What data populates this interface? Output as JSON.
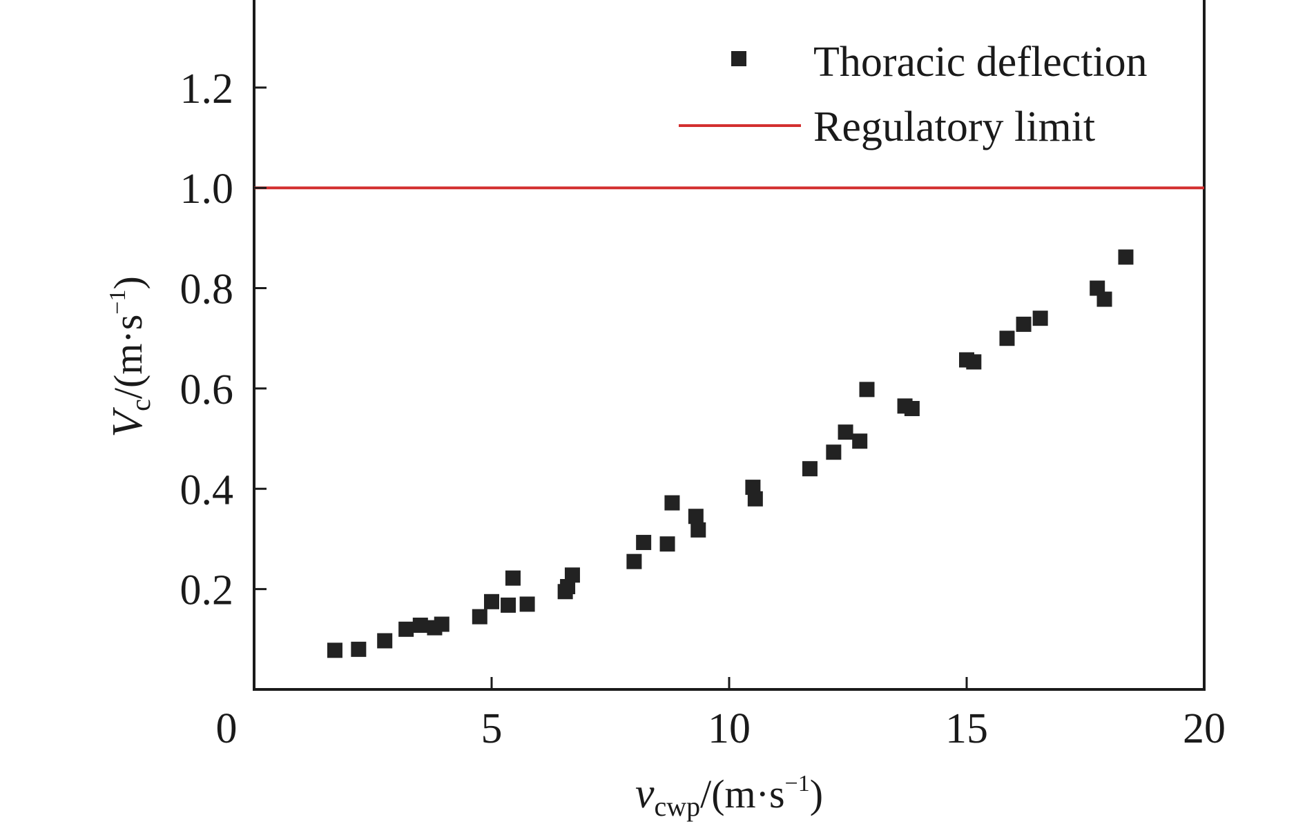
{
  "chart_data": {
    "type": "scatter",
    "x_axis": {
      "ticks": [
        0,
        5,
        10,
        15,
        20
      ],
      "tick_labels": [
        "0",
        "5",
        "10",
        "15",
        "20"
      ],
      "range": [
        0,
        20
      ],
      "label": {
        "symbol": "v",
        "subscript": "cwp",
        "unit_open": "/(m·s",
        "unit_exp": "−1",
        "unit_close": ")"
      }
    },
    "y_axis": {
      "ticks": [
        0.2,
        0.4,
        0.6,
        0.8,
        1.0,
        1.2
      ],
      "tick_labels": [
        "0.2",
        "0.4",
        "0.6",
        "0.8",
        "1.0",
        "1.2"
      ],
      "range": [
        0.0,
        1.38
      ],
      "label": {
        "symbol": "V",
        "subscript": "c",
        "unit_open": "/(m·s",
        "unit_exp": "−1",
        "unit_close": ")"
      }
    },
    "grid": false,
    "legend_position": "top-right",
    "series": [
      {
        "name": "Thoracic deflection",
        "kind": "scatter",
        "marker": "square",
        "color": "#222222",
        "points": [
          [
            1.7,
            0.078
          ],
          [
            2.2,
            0.08
          ],
          [
            2.75,
            0.097
          ],
          [
            3.2,
            0.12
          ],
          [
            3.5,
            0.128
          ],
          [
            3.8,
            0.123
          ],
          [
            3.95,
            0.13
          ],
          [
            4.75,
            0.145
          ],
          [
            5.0,
            0.175
          ],
          [
            5.35,
            0.168
          ],
          [
            5.45,
            0.222
          ],
          [
            5.75,
            0.17
          ],
          [
            6.55,
            0.195
          ],
          [
            6.6,
            0.205
          ],
          [
            6.7,
            0.228
          ],
          [
            8.0,
            0.255
          ],
          [
            8.2,
            0.293
          ],
          [
            8.7,
            0.29
          ],
          [
            8.8,
            0.372
          ],
          [
            9.3,
            0.345
          ],
          [
            9.35,
            0.318
          ],
          [
            10.5,
            0.403
          ],
          [
            10.55,
            0.38
          ],
          [
            11.7,
            0.44
          ],
          [
            12.2,
            0.473
          ],
          [
            12.45,
            0.513
          ],
          [
            12.75,
            0.495
          ],
          [
            12.9,
            0.598
          ],
          [
            13.7,
            0.565
          ],
          [
            13.85,
            0.56
          ],
          [
            15.0,
            0.657
          ],
          [
            15.15,
            0.653
          ],
          [
            15.85,
            0.7
          ],
          [
            16.2,
            0.728
          ],
          [
            16.55,
            0.74
          ],
          [
            17.75,
            0.8
          ],
          [
            17.9,
            0.778
          ],
          [
            18.35,
            0.862
          ]
        ]
      },
      {
        "name": "Regulatory limit",
        "kind": "hline",
        "y": 1.0,
        "color": "#d32f2f"
      }
    ]
  }
}
